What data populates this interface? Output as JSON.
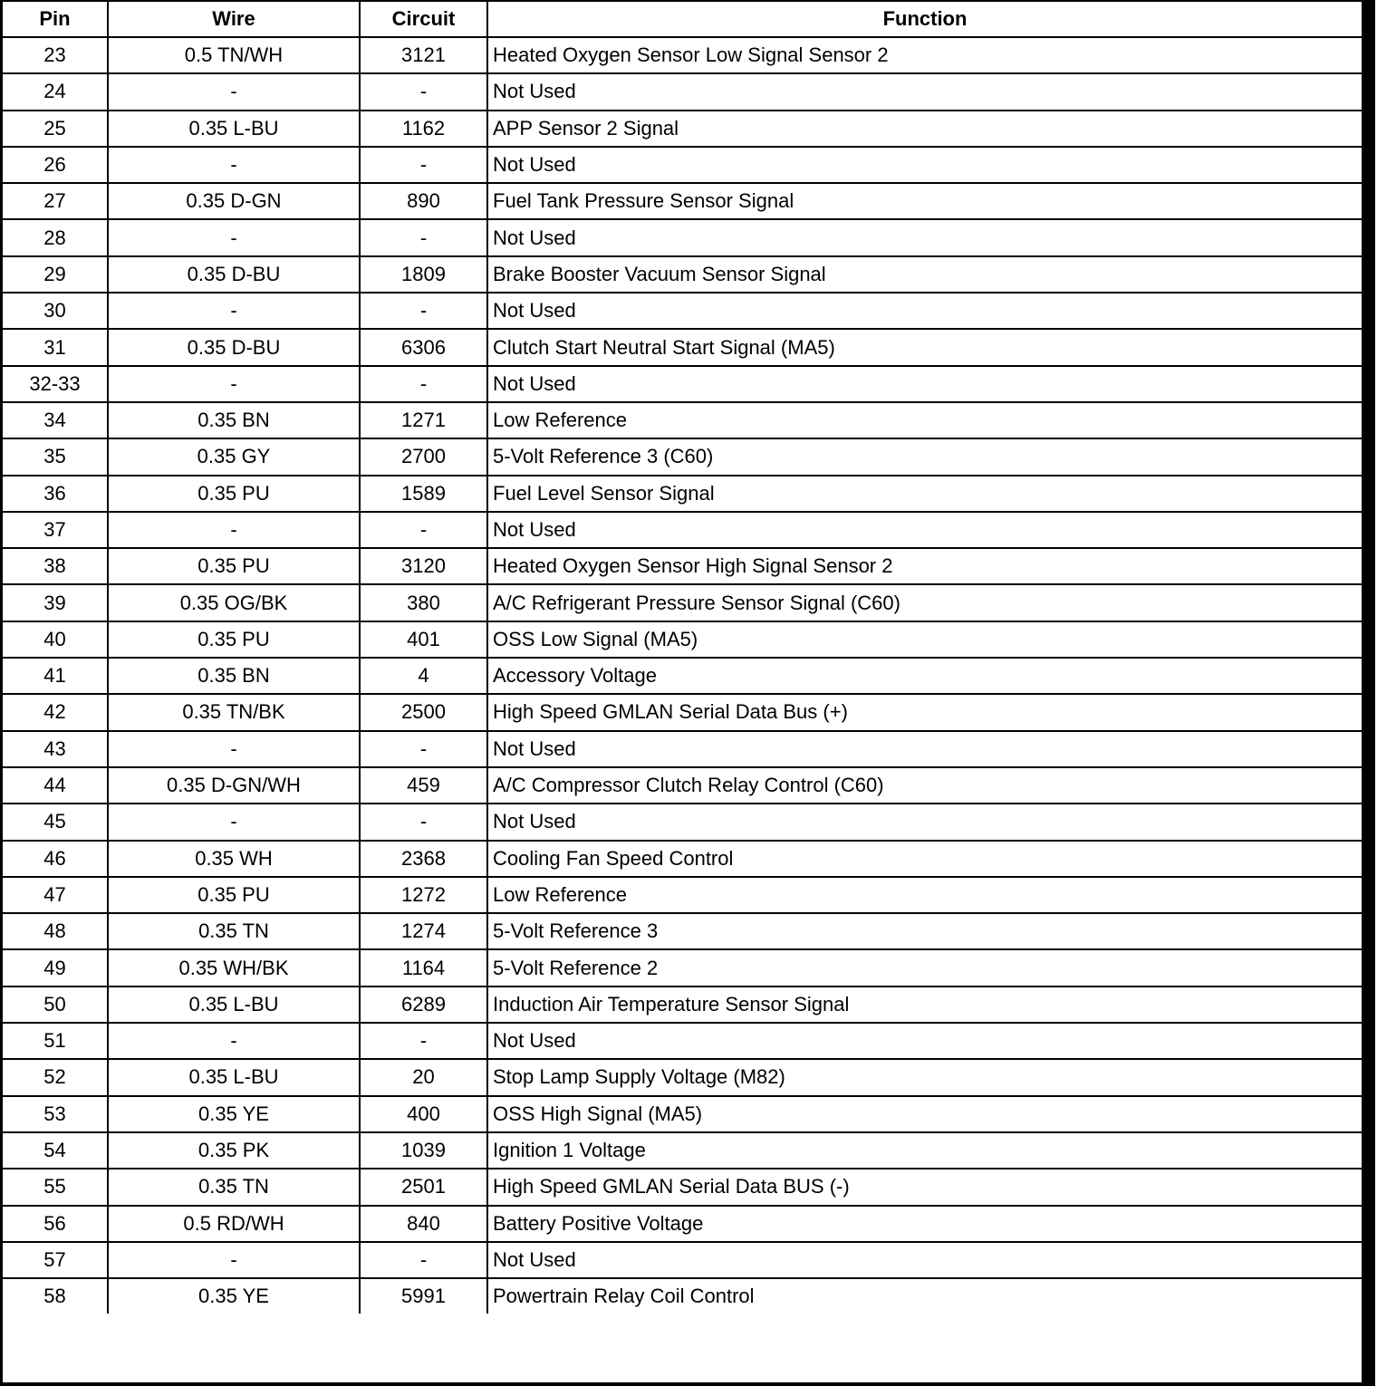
{
  "headers": {
    "pin": "Pin",
    "wire": "Wire",
    "circuit": "Circuit",
    "function": "Function"
  },
  "rows": [
    [
      "23",
      "0.5 TN/WH",
      "3121",
      "Heated Oxygen Sensor Low Signal Sensor 2"
    ],
    [
      "24",
      "-",
      "-",
      "Not Used"
    ],
    [
      "25",
      "0.35 L-BU",
      "1162",
      "APP Sensor 2 Signal"
    ],
    [
      "26",
      "-",
      "-",
      "Not Used"
    ],
    [
      "27",
      "0.35 D-GN",
      "890",
      "Fuel Tank Pressure Sensor Signal"
    ],
    [
      "28",
      "-",
      "-",
      "Not Used"
    ],
    [
      "29",
      "0.35 D-BU",
      "1809",
      "Brake Booster Vacuum Sensor Signal"
    ],
    [
      "30",
      "-",
      "-",
      "Not Used"
    ],
    [
      "31",
      "0.35 D-BU",
      "6306",
      "Clutch Start Neutral Start Signal (MA5)"
    ],
    [
      "32-33",
      "-",
      "-",
      "Not Used"
    ],
    [
      "34",
      "0.35 BN",
      "1271",
      "Low Reference"
    ],
    [
      "35",
      "0.35 GY",
      "2700",
      "5-Volt Reference 3 (C60)"
    ],
    [
      "36",
      "0.35 PU",
      "1589",
      "Fuel Level Sensor Signal"
    ],
    [
      "37",
      "-",
      "-",
      "Not Used"
    ],
    [
      "38",
      "0.35 PU",
      "3120",
      "Heated Oxygen Sensor High Signal Sensor 2"
    ],
    [
      "39",
      "0.35 OG/BK",
      "380",
      "A/C Refrigerant Pressure Sensor Signal (C60)"
    ],
    [
      "40",
      "0.35 PU",
      "401",
      "OSS Low Signal (MA5)"
    ],
    [
      "41",
      "0.35 BN",
      "4",
      "Accessory Voltage"
    ],
    [
      "42",
      "0.35 TN/BK",
      "2500",
      "High Speed GMLAN Serial Data Bus (+)"
    ],
    [
      "43",
      "-",
      "-",
      "Not Used"
    ],
    [
      "44",
      "0.35 D-GN/WH",
      "459",
      "A/C Compressor Clutch Relay Control (C60)"
    ],
    [
      "45",
      "-",
      "-",
      "Not Used"
    ],
    [
      "46",
      "0.35 WH",
      "2368",
      "Cooling Fan Speed Control"
    ],
    [
      "47",
      "0.35 PU",
      "1272",
      "Low Reference"
    ],
    [
      "48",
      "0.35 TN",
      "1274",
      "5-Volt Reference 3"
    ],
    [
      "49",
      "0.35 WH/BK",
      "1164",
      "5-Volt Reference 2"
    ],
    [
      "50",
      "0.35 L-BU",
      "6289",
      "Induction Air Temperature Sensor Signal"
    ],
    [
      "51",
      "-",
      "-",
      "Not Used"
    ],
    [
      "52",
      "0.35 L-BU",
      "20",
      "Stop Lamp Supply Voltage (M82)"
    ],
    [
      "53",
      "0.35 YE",
      "400",
      "OSS High Signal (MA5)"
    ],
    [
      "54",
      "0.35 PK",
      "1039",
      "Ignition 1 Voltage"
    ],
    [
      "55",
      "0.35 TN",
      "2501",
      "High Speed GMLAN Serial Data BUS (-)"
    ],
    [
      "56",
      "0.5 RD/WH",
      "840",
      "Battery Positive Voltage"
    ],
    [
      "57",
      "-",
      "-",
      "Not Used"
    ],
    [
      "58",
      "0.35 YE",
      "5991",
      "Powertrain Relay Coil Control"
    ]
  ]
}
